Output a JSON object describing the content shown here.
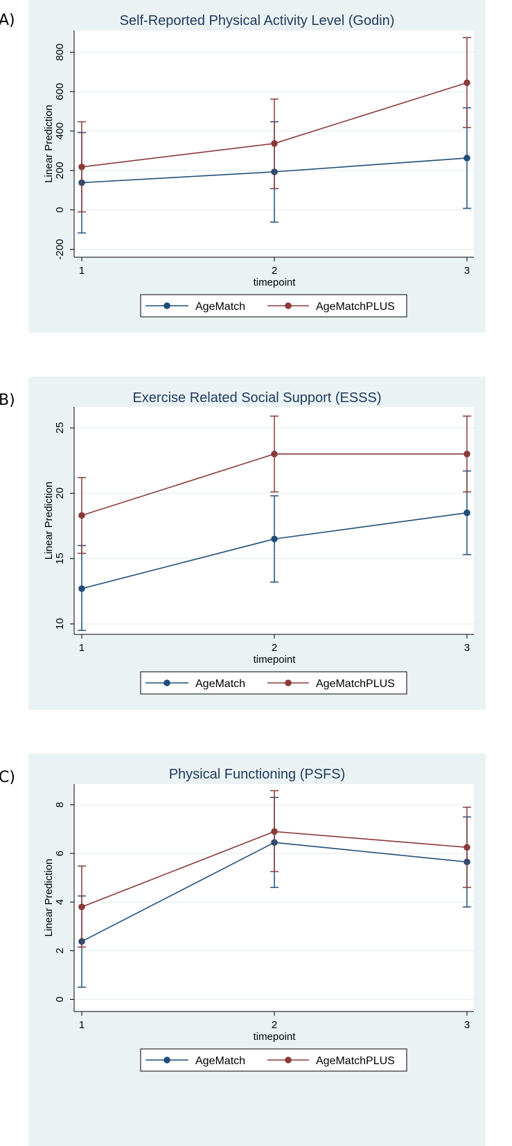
{
  "chart_data": [
    {
      "panel_label": "A)",
      "type": "line",
      "title": "Self-Reported Physical Activity Level (Godin)",
      "xlabel": "timepoint",
      "ylabel": "Linear Prediction",
      "x": [
        1,
        2,
        3
      ],
      "x_ticks": [
        "1",
        "2",
        "3"
      ],
      "y_ticks": [
        -200,
        0,
        200,
        400,
        600,
        800
      ],
      "y_tick_labels": [
        "-200",
        "0",
        "200",
        "400",
        "600",
        "800"
      ],
      "ylim": [
        -240,
        910
      ],
      "grid": true,
      "legend_position": "bottom",
      "series": [
        {
          "name": "AgeMatch",
          "color": "#1f4e79",
          "values": [
            138,
            193,
            263
          ],
          "ci_low": [
            -117,
            -62,
            8
          ],
          "ci_high": [
            392,
            447,
            518
          ]
        },
        {
          "name": "AgeMatchPLUS",
          "color": "#8b3a3a",
          "values": [
            218,
            337,
            645
          ],
          "ci_low": [
            -10,
            108,
            418
          ],
          "ci_high": [
            447,
            562,
            874
          ]
        }
      ]
    },
    {
      "panel_label": "B)",
      "type": "line",
      "title": "Exercise Related Social Support (ESSS)",
      "xlabel": "timepoint",
      "ylabel": "Linear Prediction",
      "x": [
        1,
        2,
        3
      ],
      "x_ticks": [
        "1",
        "2",
        "3"
      ],
      "y_ticks": [
        10,
        15,
        20,
        25
      ],
      "y_tick_labels": [
        "10",
        "15",
        "20",
        "25"
      ],
      "ylim": [
        9.2,
        26.6
      ],
      "grid": true,
      "legend_position": "bottom",
      "series": [
        {
          "name": "AgeMatch",
          "color": "#1f4e79",
          "values": [
            12.7,
            16.5,
            18.5
          ],
          "ci_low": [
            9.5,
            13.2,
            15.3
          ],
          "ci_high": [
            16.0,
            19.8,
            21.7
          ]
        },
        {
          "name": "AgeMatchPLUS",
          "color": "#8b3a3a",
          "values": [
            18.3,
            23.0,
            23.0
          ],
          "ci_low": [
            15.4,
            20.1,
            20.1
          ],
          "ci_high": [
            21.2,
            25.9,
            25.9
          ]
        }
      ]
    },
    {
      "panel_label": "C)",
      "type": "line",
      "title": "Physical Functioning (PSFS)",
      "xlabel": "timepoint",
      "ylabel": "Linear Prediction",
      "x": [
        1,
        2,
        3
      ],
      "x_ticks": [
        "1",
        "2",
        "3"
      ],
      "y_ticks": [
        0,
        2,
        4,
        6,
        8
      ],
      "y_tick_labels": [
        "0",
        "2",
        "4",
        "6",
        "8"
      ],
      "ylim": [
        -0.5,
        8.85
      ],
      "grid": true,
      "legend_position": "bottom",
      "series": [
        {
          "name": "AgeMatch",
          "color": "#1f4e79",
          "values": [
            2.38,
            6.45,
            5.65
          ],
          "ci_low": [
            0.5,
            4.6,
            3.8
          ],
          "ci_high": [
            4.25,
            8.3,
            7.5
          ]
        },
        {
          "name": "AgeMatchPLUS",
          "color": "#8b3a3a",
          "values": [
            3.8,
            6.9,
            6.25
          ],
          "ci_low": [
            2.15,
            5.25,
            4.6
          ],
          "ci_high": [
            5.48,
            8.58,
            7.9
          ]
        }
      ]
    }
  ]
}
